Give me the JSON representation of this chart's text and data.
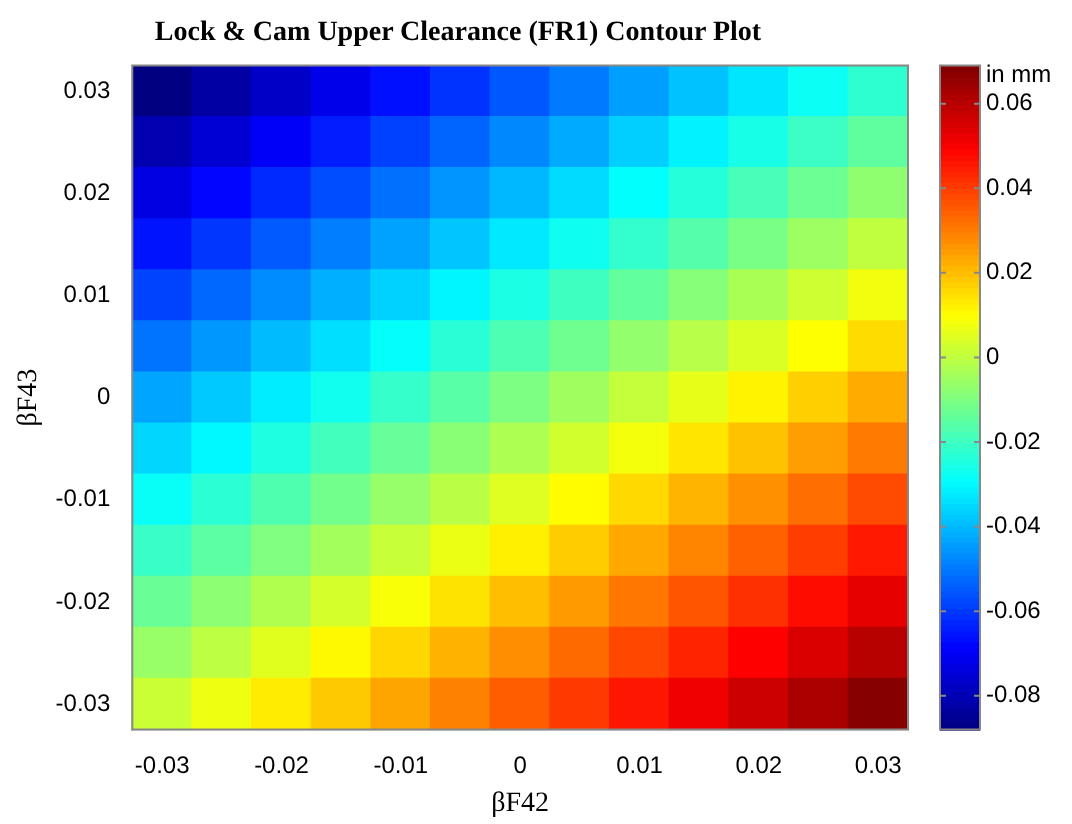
{
  "chart_data": {
    "type": "heatmap",
    "title": "Lock & Cam Upper Clearance (FR1) Contour Plot",
    "xlabel": "βF42",
    "ylabel": "βF43",
    "clabel": "in mm",
    "categories": [
      "-0.03",
      null,
      "-0.02",
      null,
      "-0.01",
      null,
      "0",
      null,
      "0.01",
      null,
      "0.02",
      null,
      "0.03"
    ],
    "y_categories": [
      "0.03",
      null,
      "0.02",
      null,
      "0.01",
      null,
      "0",
      null,
      "-0.01",
      null,
      "-0.02",
      null,
      "-0.03"
    ],
    "cells": [
      [
        -0.088,
        -0.0825,
        -0.077,
        -0.0715,
        -0.066,
        -0.0605,
        -0.055,
        -0.0495,
        -0.044,
        -0.0385,
        -0.033,
        -0.0275,
        -0.022
      ],
      [
        -0.0805,
        -0.075,
        -0.0695,
        -0.064,
        -0.0585,
        -0.053,
        -0.0475,
        -0.042,
        -0.0365,
        -0.031,
        -0.0255,
        -0.02,
        -0.0145
      ],
      [
        -0.073,
        -0.0675,
        -0.062,
        -0.0565,
        -0.051,
        -0.0455,
        -0.04,
        -0.0345,
        -0.029,
        -0.0235,
        -0.018,
        -0.0125,
        -0.007
      ],
      [
        -0.0655,
        -0.06,
        -0.0545,
        -0.049,
        -0.0435,
        -0.038,
        -0.0325,
        -0.027,
        -0.0215,
        -0.016,
        -0.0105,
        -0.005,
        0.0005
      ],
      [
        -0.058,
        -0.0525,
        -0.047,
        -0.0415,
        -0.036,
        -0.0305,
        -0.025,
        -0.0195,
        -0.014,
        -0.0085,
        -0.003,
        0.0025,
        0.008
      ],
      [
        -0.0505,
        -0.045,
        -0.0395,
        -0.034,
        -0.0285,
        -0.023,
        -0.0175,
        -0.012,
        -0.0065,
        -0.001,
        0.0045,
        0.01,
        0.0155
      ],
      [
        -0.043,
        -0.0375,
        -0.032,
        -0.0265,
        -0.021,
        -0.0155,
        -0.01,
        -0.0045,
        0.001,
        0.0065,
        0.012,
        0.0175,
        0.023
      ],
      [
        -0.0355,
        -0.03,
        -0.0245,
        -0.019,
        -0.0135,
        -0.008,
        -0.0025,
        0.003,
        0.0085,
        0.014,
        0.0195,
        0.025,
        0.0305
      ],
      [
        -0.028,
        -0.0225,
        -0.017,
        -0.0115,
        -0.006,
        -0.0005,
        0.005,
        0.0105,
        0.016,
        0.0215,
        0.027,
        0.0325,
        0.038
      ],
      [
        -0.0205,
        -0.015,
        -0.0095,
        -0.004,
        0.0015,
        0.007,
        0.0125,
        0.018,
        0.0235,
        0.029,
        0.0345,
        0.04,
        0.0455
      ],
      [
        -0.013,
        -0.0075,
        -0.002,
        0.0035,
        0.009,
        0.0145,
        0.02,
        0.0255,
        0.031,
        0.0365,
        0.042,
        0.0475,
        0.053
      ],
      [
        -0.0055,
        0,
        0.0055,
        0.011,
        0.0165,
        0.022,
        0.0275,
        0.033,
        0.0385,
        0.044,
        0.0495,
        0.055,
        0.0605
      ],
      [
        0.002,
        0.0075,
        0.013,
        0.0185,
        0.024,
        0.0295,
        0.035,
        0.0405,
        0.046,
        0.0515,
        0.057,
        0.0625,
        0.068
      ]
    ],
    "clim": [
      -0.088,
      0.069
    ],
    "cticks": [
      -0.08,
      -0.06,
      -0.04,
      -0.02,
      0,
      0.02,
      0.04,
      0.06
    ]
  }
}
